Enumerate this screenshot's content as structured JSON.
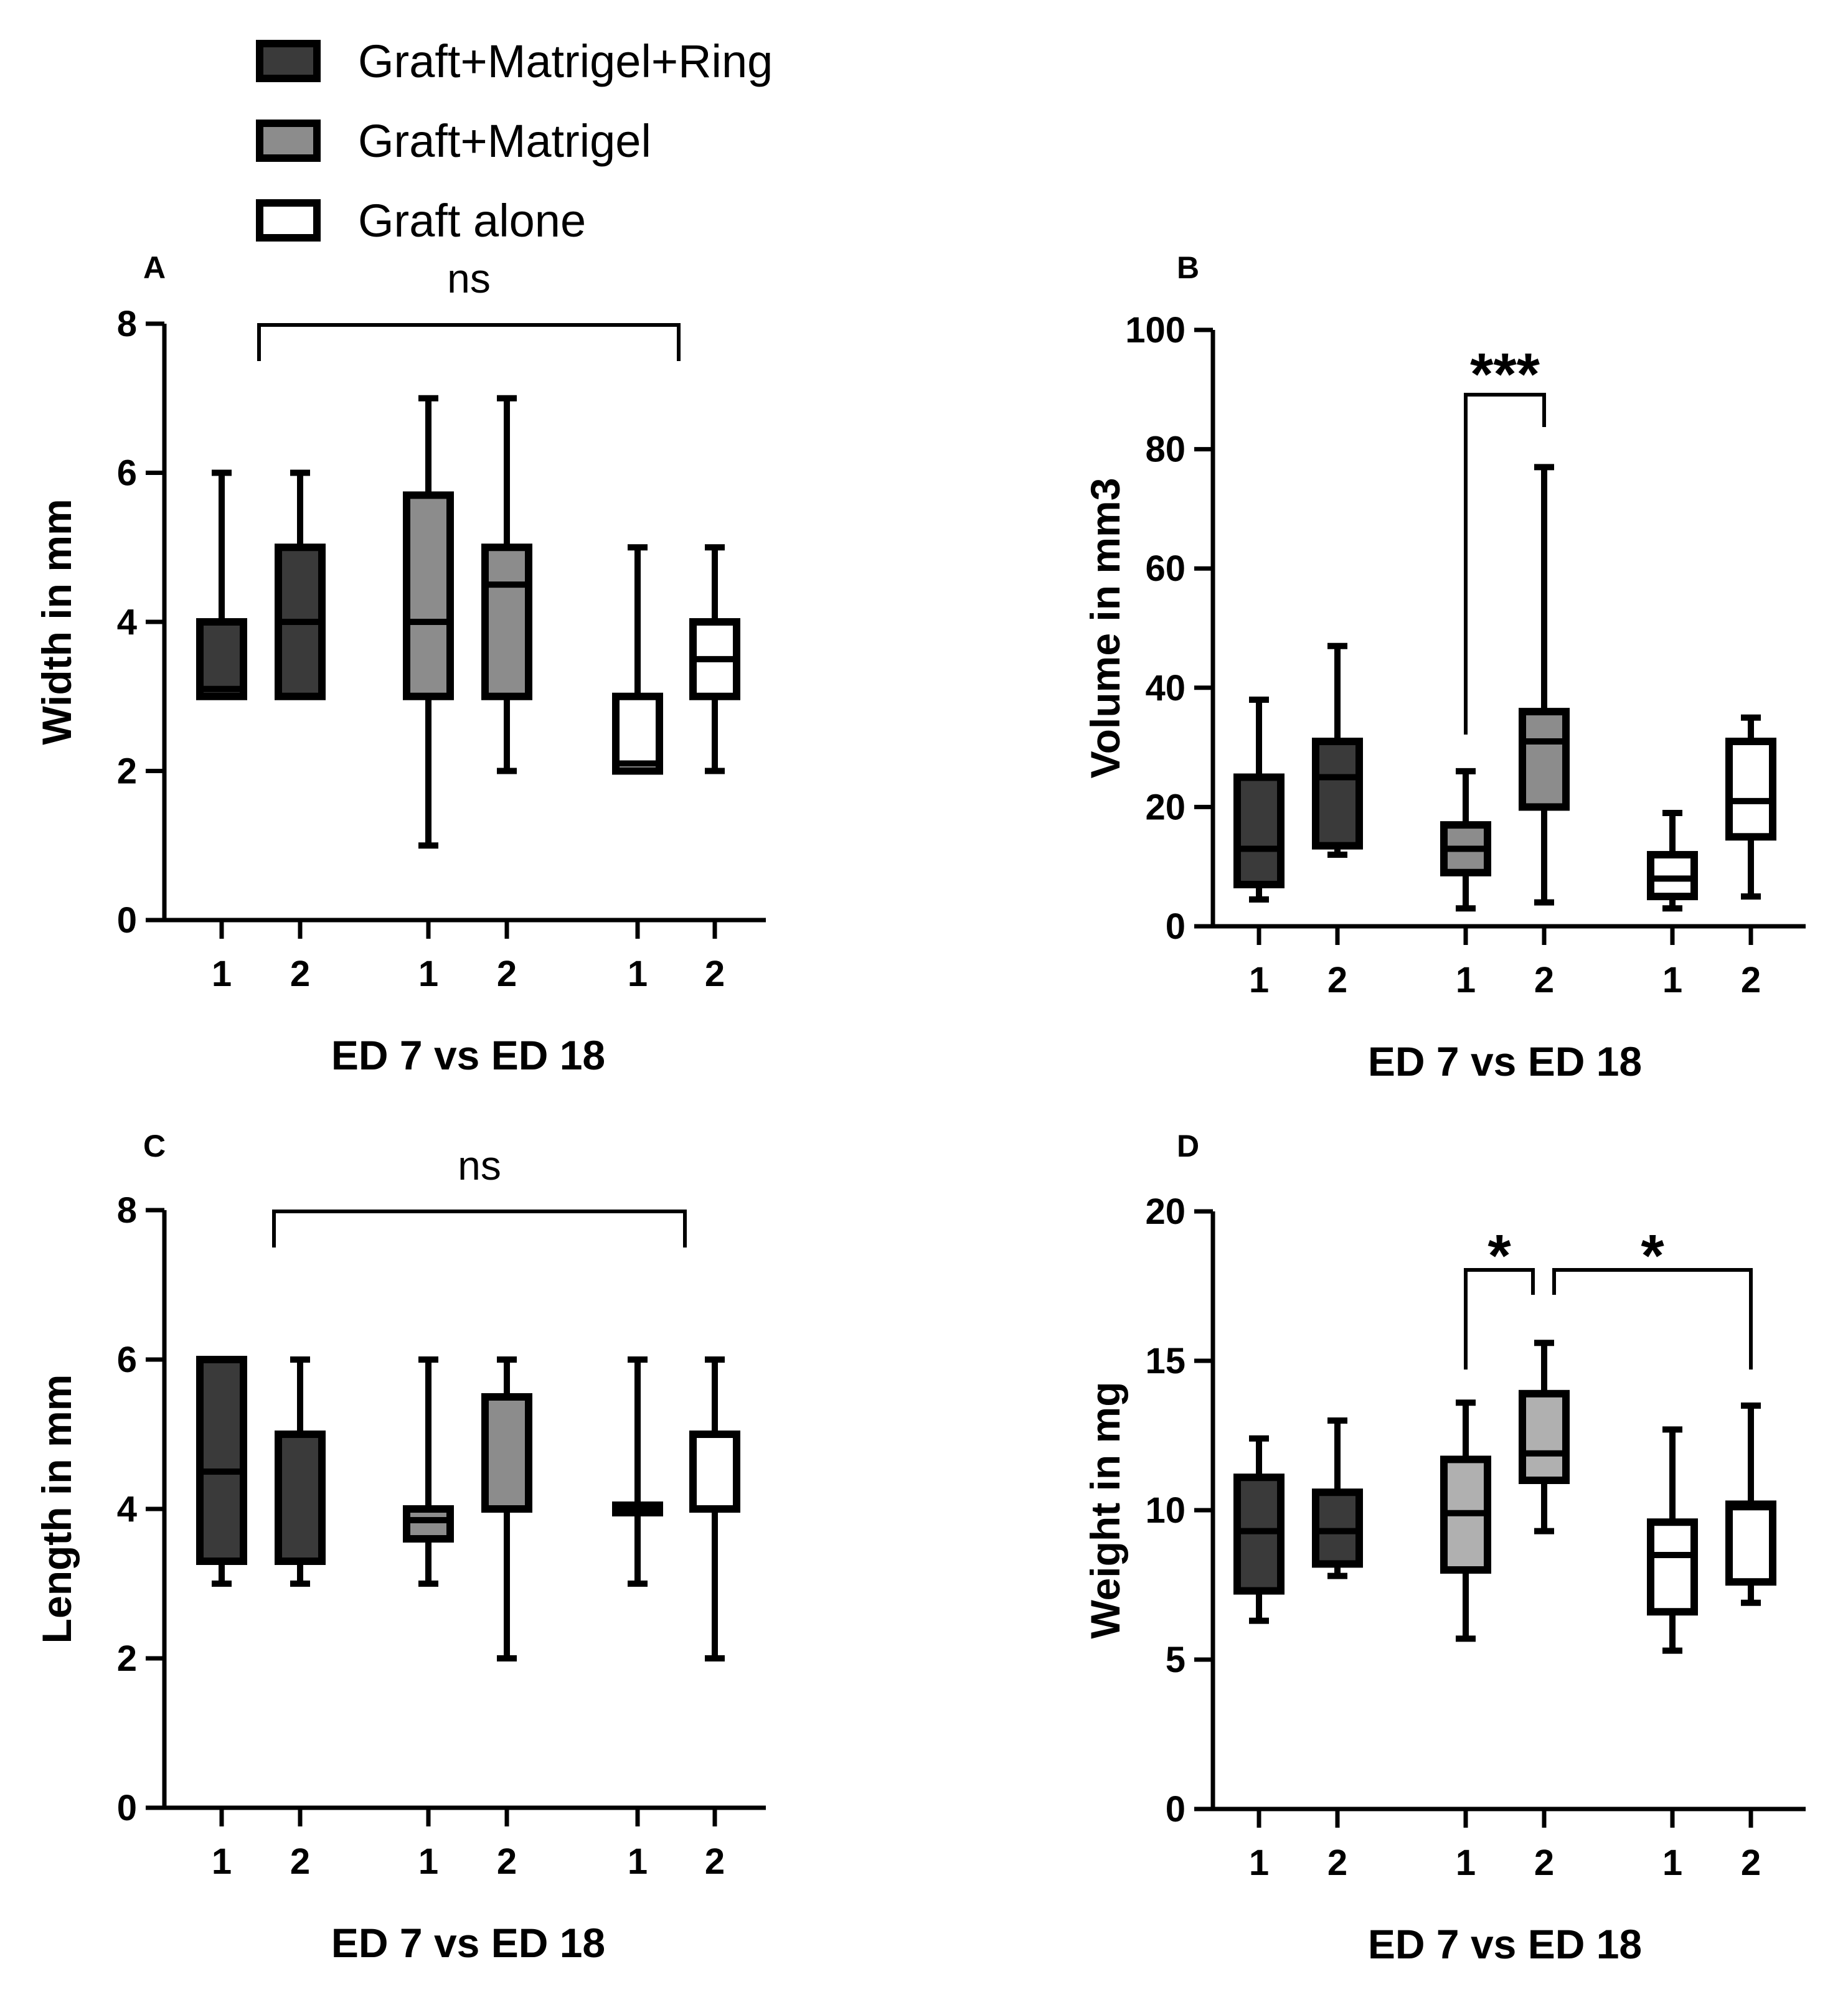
{
  "legend": {
    "items": [
      {
        "label": "Graft+Matrigel+Ring",
        "fill": "#3a3a3a"
      },
      {
        "label": "Graft+Matrigel",
        "fill": "#8c8c8c"
      },
      {
        "label": "Graft alone",
        "fill": "#ffffff"
      }
    ]
  },
  "colors": {
    "ring": "#3a3a3a",
    "matrigel": "#8c8c8c",
    "matrigel_light": "#b0b0b0",
    "alone": "#ffffff",
    "stroke": "#000000"
  },
  "chart_data": [
    {
      "panel": "A",
      "type": "box",
      "ylabel": "Width in mm",
      "xlabel": "ED 7 vs ED 18",
      "ylim": [
        0,
        8
      ],
      "yticks": [
        0,
        2,
        4,
        6,
        8
      ],
      "categories": [
        "1",
        "2",
        "1",
        "2",
        "1",
        "2"
      ],
      "boxes": [
        {
          "group": "Graft+Matrigel+Ring",
          "x": "1",
          "min": 3,
          "q1": 3,
          "median": 3.1,
          "q3": 4,
          "max": 6
        },
        {
          "group": "Graft+Matrigel+Ring",
          "x": "2",
          "min": 3,
          "q1": 3,
          "median": 4,
          "q3": 5,
          "max": 6
        },
        {
          "group": "Graft+Matrigel",
          "x": "1",
          "min": 1,
          "q1": 3,
          "median": 4,
          "q3": 5.7,
          "max": 7
        },
        {
          "group": "Graft+Matrigel",
          "x": "2",
          "min": 2,
          "q1": 3,
          "median": 4.5,
          "q3": 5,
          "max": 7
        },
        {
          "group": "Graft alone",
          "x": "1",
          "min": 2,
          "q1": 2,
          "median": 2.1,
          "q3": 3,
          "max": 5
        },
        {
          "group": "Graft alone",
          "x": "2",
          "min": 2,
          "q1": 3,
          "median": 3.5,
          "q3": 4,
          "max": 5
        }
      ],
      "annotations": [
        {
          "from": 1,
          "to": 4,
          "label": "ns"
        }
      ]
    },
    {
      "panel": "B",
      "type": "box",
      "ylabel": "Volume in mm3",
      "xlabel": "ED 7 vs ED 18",
      "ylim": [
        0,
        100
      ],
      "yticks": [
        0,
        20,
        40,
        60,
        80,
        100
      ],
      "categories": [
        "1",
        "2",
        "1",
        "2",
        "1",
        "2"
      ],
      "boxes": [
        {
          "group": "Graft+Matrigel+Ring",
          "x": "1",
          "min": 4.5,
          "q1": 7,
          "median": 13,
          "q3": 25,
          "max": 38
        },
        {
          "group": "Graft+Matrigel+Ring",
          "x": "2",
          "min": 12,
          "q1": 13.5,
          "median": 25,
          "q3": 31,
          "max": 47
        },
        {
          "group": "Graft+Matrigel",
          "x": "1",
          "min": 3,
          "q1": 9,
          "median": 13,
          "q3": 17,
          "max": 26
        },
        {
          "group": "Graft+Matrigel",
          "x": "2",
          "min": 4,
          "q1": 20,
          "median": 31,
          "q3": 36,
          "max": 77
        },
        {
          "group": "Graft alone",
          "x": "1",
          "min": 3,
          "q1": 5,
          "median": 8,
          "q3": 12,
          "max": 19
        },
        {
          "group": "Graft alone",
          "x": "2",
          "min": 5,
          "q1": 15,
          "median": 21,
          "q3": 31,
          "max": 35
        }
      ],
      "annotations": [
        {
          "from": 2,
          "to": 3,
          "label": "***"
        }
      ]
    },
    {
      "panel": "C",
      "type": "box",
      "ylabel": "Length in mm",
      "xlabel": "ED 7 vs ED 18",
      "ylim": [
        0,
        8
      ],
      "yticks": [
        0,
        2,
        4,
        6,
        8
      ],
      "categories": [
        "1",
        "2",
        "1",
        "2",
        "1",
        "2"
      ],
      "boxes": [
        {
          "group": "Graft+Matrigel+Ring",
          "x": "1",
          "min": 3,
          "q1": 3.3,
          "median": 4.5,
          "q3": 6,
          "max": 6
        },
        {
          "group": "Graft+Matrigel+Ring",
          "x": "2",
          "min": 3,
          "q1": 3.3,
          "median": 3.3,
          "q3": 5,
          "max": 6
        },
        {
          "group": "Graft+Matrigel",
          "x": "1",
          "min": 3,
          "q1": 3.6,
          "median": 3.85,
          "q3": 4,
          "max": 6
        },
        {
          "group": "Graft+Matrigel",
          "x": "2",
          "min": 2,
          "q1": 4,
          "median": 4,
          "q3": 5.5,
          "max": 6
        },
        {
          "group": "Graft alone",
          "x": "1",
          "min": 3,
          "q1": 3.95,
          "median": 4,
          "q3": 4.05,
          "max": 6
        },
        {
          "group": "Graft alone",
          "x": "2",
          "min": 2,
          "q1": 4,
          "median": 4,
          "q3": 5,
          "max": 6
        }
      ],
      "annotations": [
        {
          "from": 1,
          "to": 4,
          "label": "ns"
        }
      ]
    },
    {
      "panel": "D",
      "type": "box",
      "ylabel": "Weight in mg",
      "xlabel": "ED 7 vs ED 18",
      "ylim": [
        0,
        20
      ],
      "yticks": [
        0,
        5,
        10,
        15,
        20
      ],
      "categories": [
        "1",
        "2",
        "1",
        "2",
        "1",
        "2"
      ],
      "boxes": [
        {
          "group": "Graft+Matrigel+Ring",
          "x": "1",
          "min": 6.3,
          "q1": 7.3,
          "median": 9.3,
          "q3": 11.1,
          "max": 12.4
        },
        {
          "group": "Graft+Matrigel+Ring",
          "x": "2",
          "min": 7.8,
          "q1": 8.2,
          "median": 9.3,
          "q3": 10.6,
          "max": 13
        },
        {
          "group": "Graft+Matrigel",
          "x": "1",
          "min": 5.7,
          "q1": 8,
          "median": 9.9,
          "q3": 11.7,
          "max": 13.6
        },
        {
          "group": "Graft+Matrigel",
          "x": "2",
          "min": 9.3,
          "q1": 11,
          "median": 11.9,
          "q3": 13.9,
          "max": 15.6
        },
        {
          "group": "Graft alone",
          "x": "1",
          "min": 5.3,
          "q1": 6.6,
          "median": 8.5,
          "q3": 9.6,
          "max": 12.7
        },
        {
          "group": "Graft alone",
          "x": "2",
          "min": 6.9,
          "q1": 7.6,
          "median": 10.1,
          "q3": 10.2,
          "max": 13.5
        }
      ],
      "annotations": [
        {
          "from": 2,
          "to": 3,
          "label": "*"
        },
        {
          "from": 3,
          "to": 5,
          "label": "*"
        }
      ]
    }
  ]
}
